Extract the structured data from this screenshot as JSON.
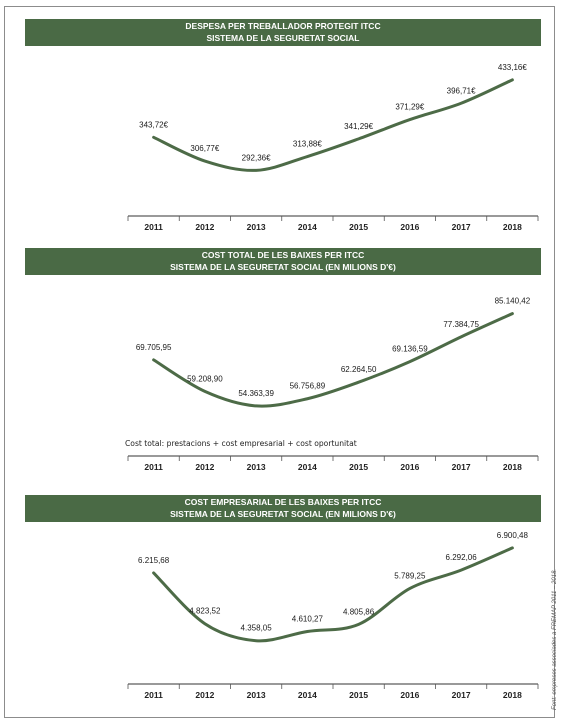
{
  "colors": {
    "banner": "#4a6a45",
    "line": "#4d6b47",
    "axis": "#333333",
    "tick": "#555555"
  },
  "side_note": "Font: empreses associades a FREMAP 2011 – 2018.",
  "chart_data": [
    {
      "type": "line",
      "title": "DESPESA PER TREBALLADOR PROTEGIT ITCC",
      "subtitle": "SISTEMA DE LA SEGURETAT SOCIAL",
      "categories": [
        "2011",
        "2012",
        "2013",
        "2014",
        "2015",
        "2016",
        "2017",
        "2018"
      ],
      "values": [
        343.72,
        306.77,
        292.36,
        313.88,
        341.29,
        371.29,
        396.71,
        433.16
      ],
      "labels": [
        "343,72€",
        "306,77€",
        "292,36€",
        "313,88€",
        "341,29€",
        "371,29€",
        "396,71€",
        "433,16€"
      ],
      "ylim": [
        240,
        450
      ],
      "note": ""
    },
    {
      "type": "line",
      "title": "COST TOTAL DE LES BAIXES PER ITCC",
      "subtitle": "SISTEMA DE LA SEGURETAT SOCIAL (EN MILIONS D'€)",
      "categories": [
        "2011",
        "2012",
        "2013",
        "2014",
        "2015",
        "2016",
        "2017",
        "2018"
      ],
      "values": [
        69705.95,
        59208.9,
        54363.39,
        56756.89,
        62264.5,
        69136.59,
        77384.75,
        85140.42
      ],
      "labels": [
        "69.705,95",
        "59.208,90",
        "54.363,39",
        "56.756,89",
        "62.264,50",
        "69.136,59",
        "77.384,75",
        "85.140,42"
      ],
      "ylim": [
        40000,
        90000
      ],
      "note": "Cost total: prestacions + cost empresarial + cost oportunitat"
    },
    {
      "type": "line",
      "title": "COST EMPRESARIAL DE LES BAIXES PER ITCC",
      "subtitle": "SISTEMA DE LA SEGURETAT SOCIAL (EN MILIONS D'€)",
      "categories": [
        "2011",
        "2012",
        "2013",
        "2014",
        "2015",
        "2016",
        "2017",
        "2018"
      ],
      "values": [
        6215.68,
        4823.52,
        4358.05,
        4610.27,
        4805.86,
        5789.25,
        6292.06,
        6900.48
      ],
      "labels": [
        "6.215,68",
        "4.823,52",
        "4.358,05",
        "4.610,27",
        "4.805,86",
        "5.789,25",
        "6.292,06",
        "6.900,48"
      ],
      "ylim": [
        3500,
        7200
      ],
      "note": ""
    }
  ]
}
